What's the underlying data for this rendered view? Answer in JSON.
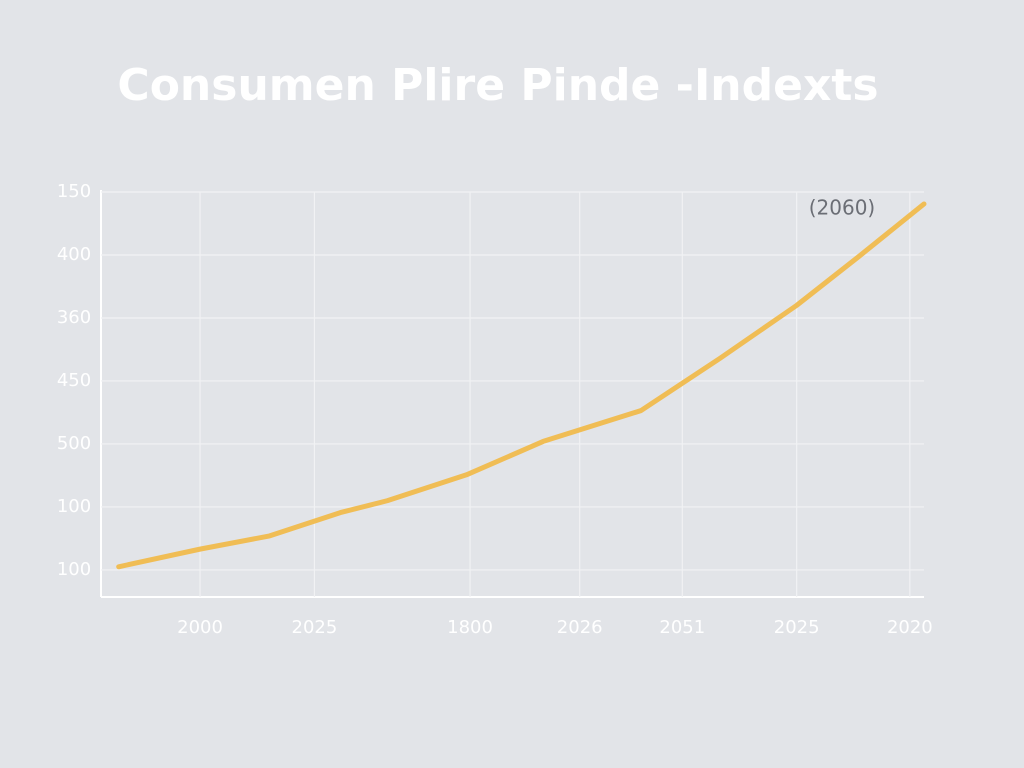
{
  "chart_data": {
    "type": "line",
    "title": "Consumen Plire Pinde -Indexts",
    "annotation": "(2060)",
    "x": [
      -0.69,
      0,
      0.59,
      1.19,
      1.59,
      2.26,
      2.91,
      3.74,
      4.41,
      5.06,
      5.59,
      6.14
    ],
    "series": [
      {
        "color": "#f0bd55",
        "values": [
          0.05,
          0.33,
          0.54,
          0.91,
          1.1,
          1.51,
          2.04,
          2.53,
          3.36,
          4.2,
          4.98,
          5.81
        ]
      }
    ],
    "xlim": [
      -0.84,
      6.14
    ],
    "xticks": [
      {
        "value": 0,
        "label": "2000"
      },
      {
        "value": 0.97,
        "label": "2025"
      },
      {
        "value": 2.29,
        "label": "1800"
      },
      {
        "value": 3.22,
        "label": "2026"
      },
      {
        "value": 4.09,
        "label": "2051"
      },
      {
        "value": 5.06,
        "label": "2025"
      },
      {
        "value": 6.02,
        "label": "2020"
      }
    ],
    "ylim": [
      -0.43,
      6
    ],
    "yticks": [
      {
        "value": 0,
        "label": "100"
      },
      {
        "value": 1,
        "label": "100"
      },
      {
        "value": 2,
        "label": "500"
      },
      {
        "value": 3,
        "label": "450"
      },
      {
        "value": 4,
        "label": "360"
      },
      {
        "value": 5,
        "label": "400"
      },
      {
        "value": 6,
        "label": "150"
      }
    ],
    "grid": true
  }
}
